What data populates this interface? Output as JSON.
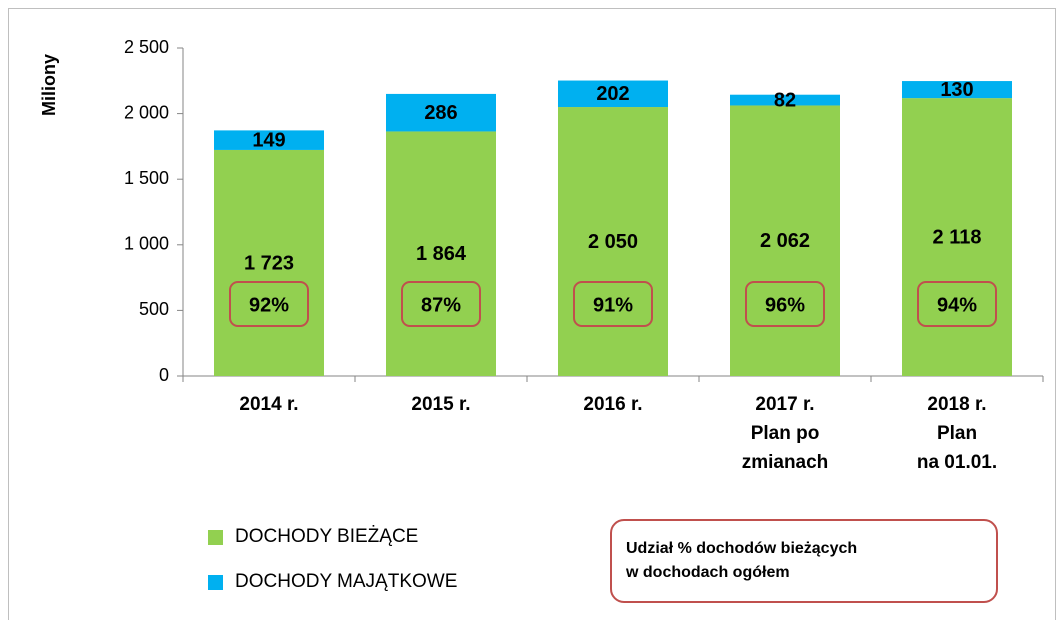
{
  "chart_data": {
    "type": "stacked_bar",
    "y_label": "Miliony",
    "categories": [
      "2014 r.",
      "2015 r.",
      "2016 r.",
      "2017 r.\nPlan po\nzmianach",
      "2018 r.\nPlan\nna 01.01."
    ],
    "series": [
      {
        "name": "DOCHODY BIEŻĄCE",
        "color": "#92d050",
        "values": [
          1723,
          1864,
          2050,
          2062,
          2118
        ],
        "value_labels": [
          "1 723",
          "1 864",
          "2 050",
          "2 062",
          "2 118"
        ]
      },
      {
        "name": "DOCHODY MAJĄTKOWE",
        "color": "#00b0f0",
        "values": [
          149,
          286,
          202,
          82,
          130
        ]
      }
    ],
    "ylim": [
      0,
      2500
    ],
    "yticks": [
      0,
      500,
      {
        "value": 1000,
        "label": "1 000"
      },
      {
        "value": 1500,
        "label": "1 500"
      },
      {
        "value": 2000,
        "label": "2 000"
      },
      {
        "value": 2500,
        "label": "2 500"
      }
    ],
    "annotation": {
      "title": "Udział % dochodów bieżących\nw dochodach ogółem",
      "color": "#c0504d",
      "values": [
        92,
        87,
        91,
        96,
        94
      ],
      "value_labels": [
        "92%",
        "87%",
        "91%",
        "96%",
        "94%"
      ]
    }
  }
}
